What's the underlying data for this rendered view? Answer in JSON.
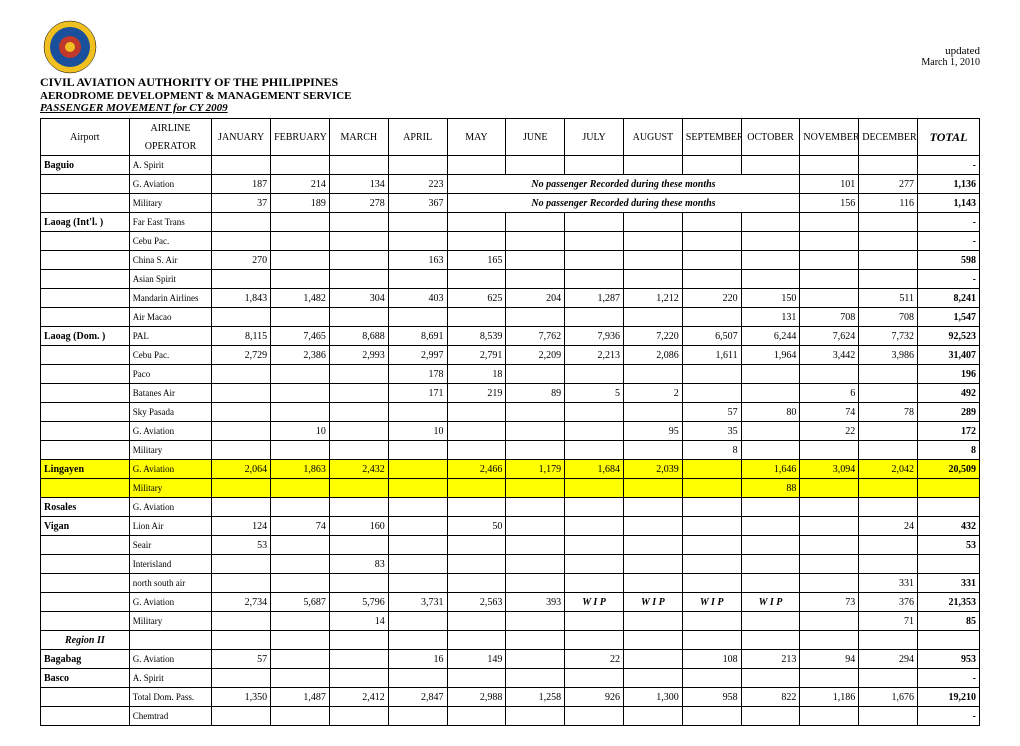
{
  "updated_label": "updated",
  "updated_date": "March 1, 2010",
  "title1": "CIVIL AVIATION AUTHORITY OF THE PHILIPPINES",
  "title2": "AERODROME DEVELOPMENT & MANAGEMENT SERVICE",
  "title3": "PASSENGER MOVEMENT for CY 2009",
  "col_airport": "Airport",
  "col_airline_top": "AIRLINE",
  "col_airline_bot": "OPERATOR",
  "months": [
    "JANUARY",
    "FEBRUARY",
    "MARCH",
    "APRIL",
    "MAY",
    "JUNE",
    "JULY",
    "AUGUST",
    "SEPTEMBER",
    "OCTOBER",
    "NOVEMBER",
    "DECEMBER"
  ],
  "col_total": "TOTAL",
  "note_no_pax": "No passenger Recorded during these months",
  "wip": "W I P",
  "dash": "-",
  "logo_colors": {
    "outer": "#f0c020",
    "ring": "#1a4f9c",
    "inner": "#c0392b"
  },
  "highlight_color": "#ffff00",
  "rows": [
    {
      "airport": "Baguio",
      "op": "A. Spirit",
      "vals": [
        "",
        "",
        "",
        "",
        "",
        "",
        "",
        "",
        "",
        "",
        "",
        ""
      ],
      "total": "-",
      "dash": true
    },
    {
      "airport": "",
      "op": "G. Aviation",
      "vals": [
        "187",
        "214",
        "134",
        "223",
        "",
        "",
        "",
        "",
        "",
        "",
        "101",
        "277"
      ],
      "total": "1,136",
      "merge": {
        "start": 4,
        "end": 9
      }
    },
    {
      "airport": "",
      "op": "Military",
      "vals": [
        "37",
        "189",
        "278",
        "367",
        "",
        "",
        "",
        "",
        "",
        "",
        "156",
        "116"
      ],
      "total": "1,143",
      "merge": {
        "start": 4,
        "end": 9
      }
    },
    {
      "airport": "Laoag  (Int'l. )",
      "op": "Far East Trans",
      "vals": [
        "",
        "",
        "",
        "",
        "",
        "",
        "",
        "",
        "",
        "",
        "",
        ""
      ],
      "total": "-",
      "dash": true
    },
    {
      "airport": "",
      "op": "Cebu Pac.",
      "vals": [
        "",
        "",
        "",
        "",
        "",
        "",
        "",
        "",
        "",
        "",
        "",
        ""
      ],
      "total": "-",
      "dash": true
    },
    {
      "airport": "",
      "op": "China S. Air",
      "vals": [
        "270",
        "",
        "",
        "163",
        "165",
        "",
        "",
        "",
        "",
        "",
        "",
        ""
      ],
      "total": "598"
    },
    {
      "airport": "",
      "op": "Asian Spirit",
      "vals": [
        "",
        "",
        "",
        "",
        "",
        "",
        "",
        "",
        "",
        "",
        "",
        ""
      ],
      "total": "-",
      "dash": true
    },
    {
      "airport": "",
      "op": "Mandarin Airlines",
      "vals": [
        "1,843",
        "1,482",
        "304",
        "403",
        "625",
        "204",
        "1,287",
        "1,212",
        "220",
        "150",
        "",
        "511"
      ],
      "total": "8,241"
    },
    {
      "airport": "",
      "op": "Air Macao",
      "vals": [
        "",
        "",
        "",
        "",
        "",
        "",
        "",
        "",
        "",
        "131",
        "708",
        "708"
      ],
      "total": "1,547"
    },
    {
      "airport": "Laoag  (Dom. )",
      "op": "PAL",
      "vals": [
        "8,115",
        "7,465",
        "8,688",
        "8,691",
        "8,539",
        "7,762",
        "7,936",
        "7,220",
        "6,507",
        "6,244",
        "7,624",
        "7,732"
      ],
      "total": "92,523"
    },
    {
      "airport": "",
      "op": "Cebu Pac.",
      "vals": [
        "2,729",
        "2,386",
        "2,993",
        "2,997",
        "2,791",
        "2,209",
        "2,213",
        "2,086",
        "1,611",
        "1,964",
        "3,442",
        "3,986"
      ],
      "total": "31,407"
    },
    {
      "airport": "",
      "op": "Paco",
      "vals": [
        "",
        "",
        "",
        "178",
        "18",
        "",
        "",
        "",
        "",
        "",
        "",
        ""
      ],
      "total": "196"
    },
    {
      "airport": "",
      "op": "Batanes Air",
      "vals": [
        "",
        "",
        "",
        "171",
        "219",
        "89",
        "5",
        "2",
        "",
        "",
        "6",
        ""
      ],
      "total": "492"
    },
    {
      "airport": "",
      "op": "Sky Pasada",
      "vals": [
        "",
        "",
        "",
        "",
        "",
        "",
        "",
        "",
        "57",
        "80",
        "74",
        "78"
      ],
      "total": "289"
    },
    {
      "airport": "",
      "op": "G. Aviation",
      "vals": [
        "",
        "10",
        "",
        "10",
        "",
        "",
        "",
        "95",
        "35",
        "",
        "22",
        ""
      ],
      "total": "172"
    },
    {
      "airport": "",
      "op": "Military",
      "vals": [
        "",
        "",
        "",
        "",
        "",
        "",
        "",
        "",
        "8",
        "",
        "",
        ""
      ],
      "total": "8"
    },
    {
      "airport": "Lingayen",
      "op": "G. Aviation",
      "vals": [
        "2,064",
        "1,863",
        "2,432",
        "",
        "2,466",
        "1,179",
        "1,684",
        "2,039",
        "",
        "1,646",
        "3,094",
        "2,042"
      ],
      "total": "20,509",
      "hl": true
    },
    {
      "airport": "",
      "op": "Military",
      "vals": [
        "",
        "",
        "",
        "",
        "",
        "",
        "",
        "",
        "",
        "88",
        "",
        ""
      ],
      "total": "",
      "hl": true
    },
    {
      "airport": "Rosales",
      "op": "G. Aviation",
      "vals": [
        "",
        "",
        "",
        "",
        "",
        "",
        "",
        "",
        "",
        "",
        "",
        ""
      ],
      "total": ""
    },
    {
      "airport": "Vigan",
      "op": "Lion Air",
      "vals": [
        "124",
        "74",
        "160",
        "",
        "50",
        "",
        "",
        "",
        "",
        "",
        "",
        "24"
      ],
      "total": "432"
    },
    {
      "airport": "",
      "op": "Seair",
      "vals": [
        "53",
        "",
        "",
        "",
        "",
        "",
        "",
        "",
        "",
        "",
        "",
        ""
      ],
      "total": "53"
    },
    {
      "airport": "",
      "op": "Interisland",
      "vals": [
        "",
        "",
        "83",
        "",
        "",
        "",
        "",
        "",
        "",
        "",
        "",
        ""
      ],
      "total": ""
    },
    {
      "airport": "",
      "op": "north south air",
      "vals": [
        "",
        "",
        "",
        "",
        "",
        "",
        "",
        "",
        "",
        "",
        "",
        "331"
      ],
      "total": "331"
    },
    {
      "airport": "",
      "op": "G. Aviation",
      "vals": [
        "2,734",
        "5,687",
        "5,796",
        "3,731",
        "2,563",
        "393",
        "WIP",
        "WIP",
        "WIP",
        "WIP",
        "73",
        "376"
      ],
      "total": "21,353",
      "wipcols": [
        6,
        7,
        8,
        9
      ]
    },
    {
      "airport": "",
      "op": "Military",
      "vals": [
        "",
        "",
        "14",
        "",
        "",
        "",
        "",
        "",
        "",
        "",
        "",
        "71"
      ],
      "total": "85"
    },
    {
      "airport": "Region II",
      "op": "",
      "vals": [
        "",
        "",
        "",
        "",
        "",
        "",
        "",
        "",
        "",
        "",
        "",
        ""
      ],
      "total": "",
      "region": true
    },
    {
      "airport": "Bagabag",
      "op": "G. Aviation",
      "vals": [
        "57",
        "",
        "",
        "16",
        "149",
        "",
        "22",
        "",
        "108",
        "213",
        "94",
        "294"
      ],
      "total": "953"
    },
    {
      "airport": "Basco",
      "op": "A. Spirit",
      "vals": [
        "",
        "",
        "",
        "",
        "",
        "",
        "",
        "",
        "",
        "",
        "",
        ""
      ],
      "total": "-",
      "dash": true
    },
    {
      "airport": "",
      "op": "Total Dom. Pass.",
      "vals": [
        "1,350",
        "1,487",
        "2,412",
        "2,847",
        "2,988",
        "1,258",
        "926",
        "1,300",
        "958",
        "822",
        "1,186",
        "1,676"
      ],
      "total": "19,210"
    },
    {
      "airport": "",
      "op": "Chemtrad",
      "vals": [
        "",
        "",
        "",
        "",
        "",
        "",
        "",
        "",
        "",
        "",
        "",
        ""
      ],
      "total": "-",
      "dash": true
    }
  ]
}
